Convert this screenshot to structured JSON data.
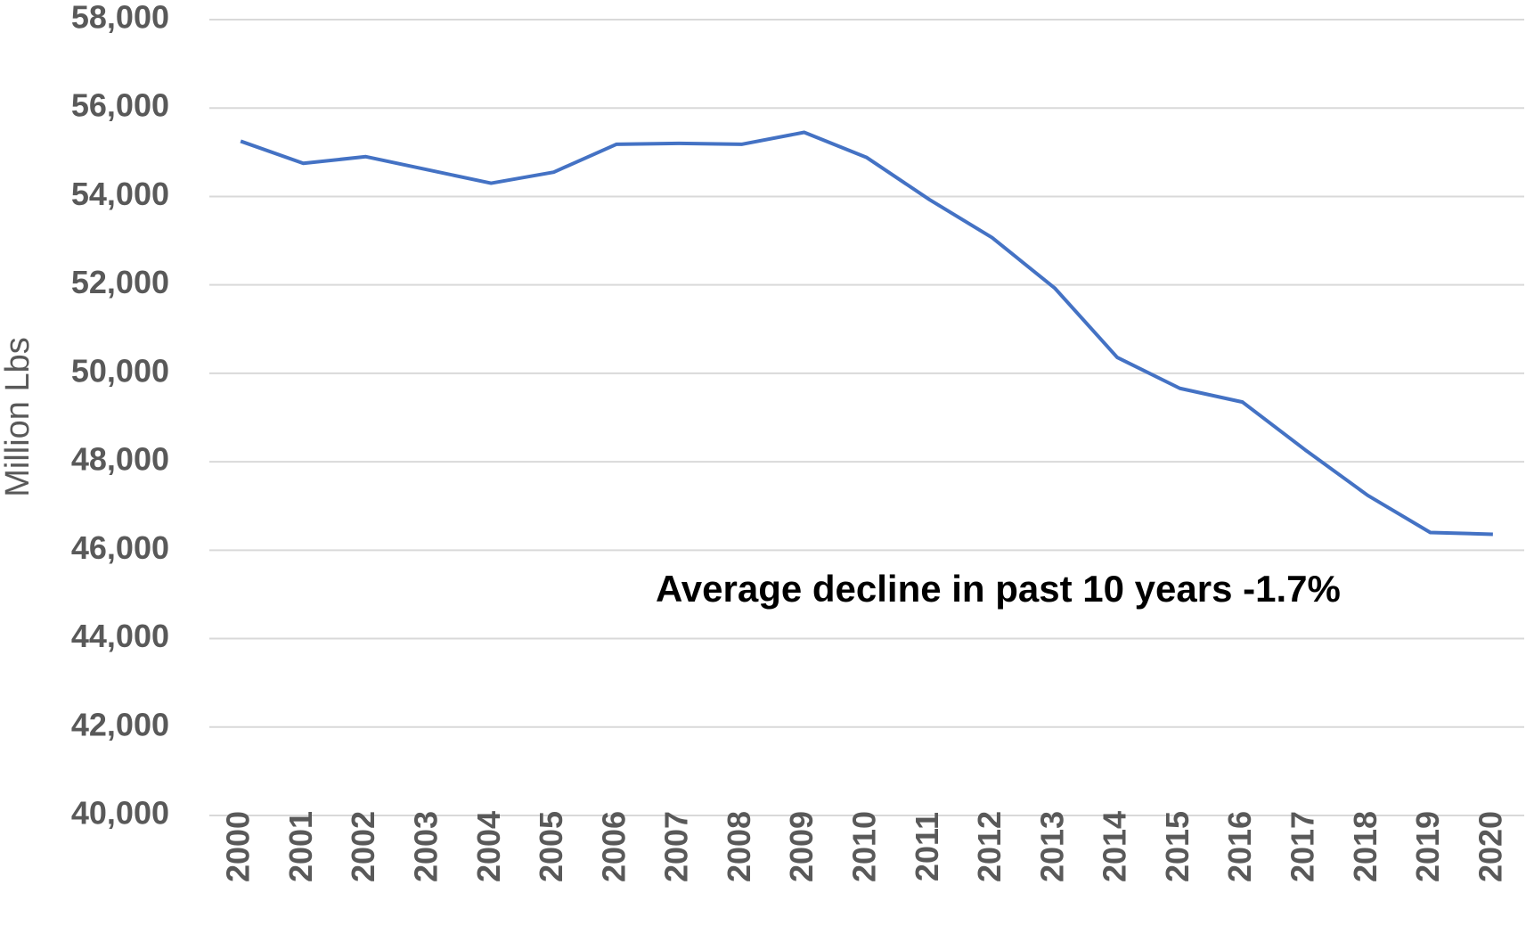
{
  "chart_data": {
    "type": "line",
    "y_label": "Million Lbs",
    "annotation": "Average decline in past 10 years -1.7%",
    "categories": [
      "2000",
      "2001",
      "2002",
      "2003",
      "2004",
      "2005",
      "2006",
      "2007",
      "2008",
      "2009",
      "2010",
      "2011",
      "2012",
      "2013",
      "2014",
      "2015",
      "2016",
      "2017",
      "2018",
      "2019",
      "2020"
    ],
    "series": [
      {
        "color": "#4472c4",
        "values": [
          55250,
          54750,
          54900,
          54600,
          54300,
          54550,
          55180,
          55200,
          55180,
          55450,
          54880,
          53930,
          53070,
          51930,
          50360,
          49660,
          49350,
          48270,
          47240,
          46400,
          46360
        ]
      }
    ],
    "ylim": [
      40000,
      58000
    ],
    "yticks": [
      {
        "value": 40000,
        "label": "40,000"
      },
      {
        "value": 42000,
        "label": "42,000"
      },
      {
        "value": 44000,
        "label": "44,000"
      },
      {
        "value": 46000,
        "label": "46,000"
      },
      {
        "value": 48000,
        "label": "48,000"
      },
      {
        "value": 50000,
        "label": "50,000"
      },
      {
        "value": 52000,
        "label": "52,000"
      },
      {
        "value": 54000,
        "label": "54,000"
      },
      {
        "value": 56000,
        "label": "56,000"
      },
      {
        "value": 58000,
        "label": "58,000"
      }
    ],
    "grid": true
  }
}
